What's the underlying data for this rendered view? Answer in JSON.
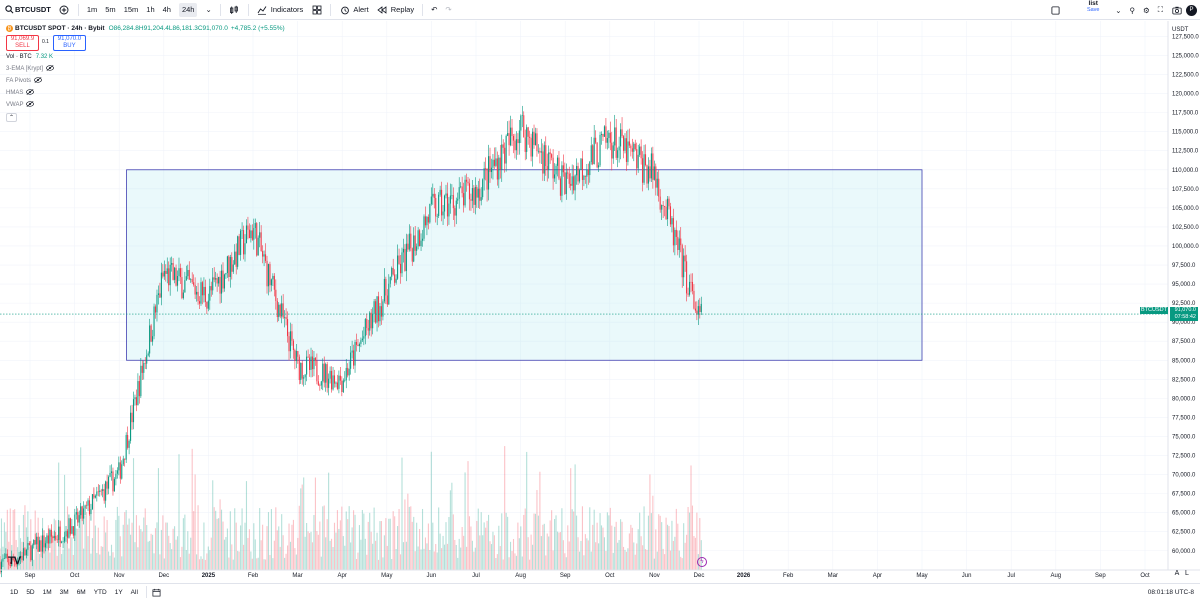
{
  "toolbar": {
    "symbol": "BTCUSDT",
    "timeframes": [
      "1m",
      "5m",
      "15m",
      "1h",
      "4h",
      "24h"
    ],
    "active_timeframe": "24h",
    "indicators_label": "Indicators",
    "alert_label": "Alert",
    "replay_label": "Replay",
    "list_title": "list",
    "list_subtitle": "Save"
  },
  "legend": {
    "title": "BTCUSDT SPOT · 24h · Bybit",
    "open": "O86,284.8",
    "high": "H91,204.4",
    "low": "L86,181.3",
    "close": "C91,070.0",
    "change": "+4,785.2 (+5.55%)",
    "sell_price": "91,069.9",
    "sell_label": "SELL",
    "spread": "0.1",
    "buy_price": "91,070.0",
    "buy_label": "BUY",
    "vol_label": "Vol · BTC",
    "vol_value": "7.32 K",
    "indicators": [
      "3-EMA [Krypt]",
      "FA Pivots",
      "HMAS",
      "VWAP"
    ]
  },
  "price_axis": {
    "currency": "USDT",
    "ticks": [
      "127,500.0",
      "125,000.0",
      "122,500.0",
      "120,000.0",
      "117,500.0",
      "115,000.0",
      "112,500.0",
      "110,000.0",
      "107,500.0",
      "105,000.0",
      "102,500.0",
      "100,000.0",
      "97,500.0",
      "95,000.0",
      "92,500.0",
      "90,000.0",
      "87,500.0",
      "85,000.0",
      "82,500.0",
      "80,000.0",
      "77,500.0",
      "75,000.0",
      "72,500.0",
      "70,000.0",
      "67,500.0",
      "65,000.0",
      "62,500.0",
      "60,000.0"
    ],
    "last_price": "91,070.0",
    "countdown": "07:58:42",
    "symbol_tag": "BTCUSDT"
  },
  "time_axis": {
    "labels": [
      "Sep",
      "Oct",
      "Nov",
      "Dec",
      "2025",
      "Feb",
      "Mar",
      "Apr",
      "May",
      "Jun",
      "Jul",
      "Aug",
      "Sep",
      "Oct",
      "Nov",
      "Dec",
      "2026",
      "Feb",
      "Mar",
      "Apr",
      "May",
      "Jun",
      "Jul",
      "Aug",
      "Sep",
      "Oct"
    ]
  },
  "bottombar": {
    "ranges": [
      "1D",
      "5D",
      "1M",
      "3M",
      "6M",
      "YTD",
      "1Y",
      "All"
    ],
    "clock": "08:01:18 UTC-8"
  },
  "chart_data": {
    "type": "candlestick",
    "title": "BTCUSDT SPOT · 24h · Bybit",
    "ylim": [
      58000,
      129000
    ],
    "last_price": 91070.0,
    "range_box": {
      "from": "2024-11-06",
      "to": "2026-05-01",
      "high": 110000,
      "low": 85000
    },
    "monthly_closes": [
      {
        "month": "2024-09",
        "close": 63500
      },
      {
        "month": "2024-10",
        "close": 70200
      },
      {
        "month": "2024-11",
        "close": 96400
      },
      {
        "month": "2024-12",
        "close": 93400
      },
      {
        "month": "2025-01",
        "close": 102400
      },
      {
        "month": "2025-02",
        "close": 84300
      },
      {
        "month": "2025-03",
        "close": 82500
      },
      {
        "month": "2025-04",
        "close": 94200
      },
      {
        "month": "2025-05",
        "close": 104600
      },
      {
        "month": "2025-06",
        "close": 107100
      },
      {
        "month": "2025-07",
        "close": 115700
      },
      {
        "month": "2025-08",
        "close": 108200
      },
      {
        "month": "2025-09",
        "close": 114000
      },
      {
        "month": "2025-10",
        "close": 109500
      },
      {
        "month": "2025-11",
        "close": 90400
      },
      {
        "month": "2025-12",
        "close": 91070
      }
    ]
  }
}
